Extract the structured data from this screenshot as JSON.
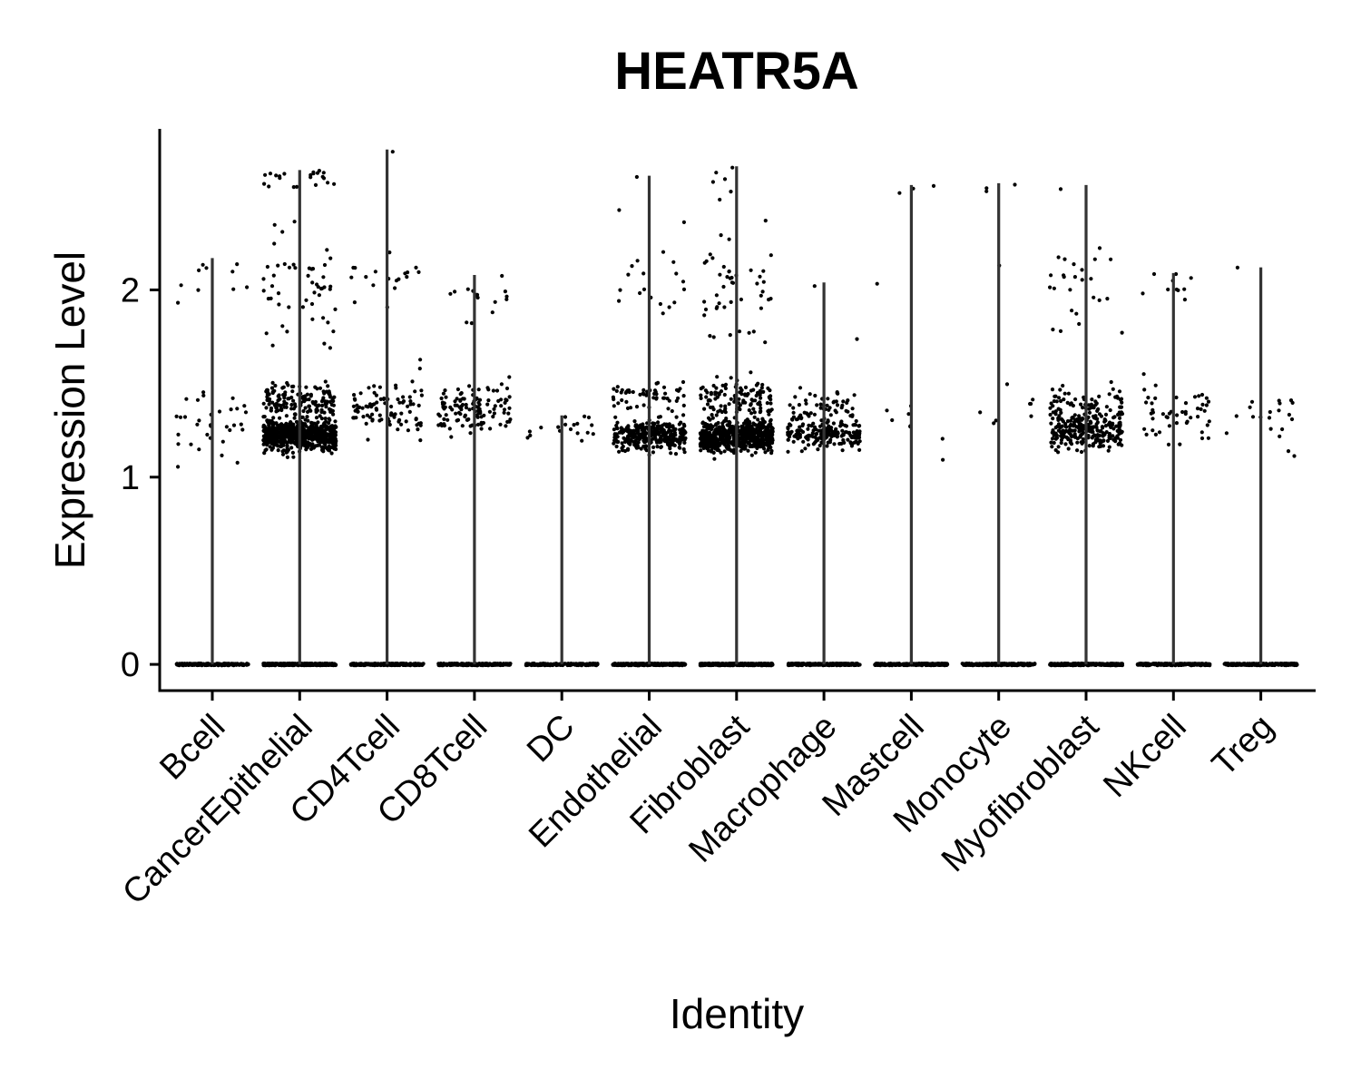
{
  "chart_data": {
    "type": "violin",
    "title": "HEATR5A",
    "xlabel": "Identity",
    "ylabel": "Expression Level",
    "ylim": [
      -0.14,
      2.86
    ],
    "yticks": [
      0,
      1,
      2
    ],
    "categories": [
      "Bcell",
      "CancerEpithelial",
      "CD4Tcell",
      "CD8Tcell",
      "DC",
      "Endothelial",
      "Fibroblast",
      "Macrophage",
      "Mastcell",
      "Monocyte",
      "Myofibroblast",
      "NKcell",
      "Treg"
    ],
    "max_values": [
      2.17,
      2.64,
      2.75,
      2.08,
      1.33,
      2.61,
      2.66,
      2.04,
      2.56,
      2.57,
      2.56,
      2.09,
      2.12
    ],
    "point_color": "#000000",
    "violin_color": "#333333",
    "groups": [
      {
        "name": "Bcell",
        "zero_count": 200,
        "clusters": [
          {
            "mean": 1.3,
            "sd": 0.08,
            "n": 30
          },
          {
            "mean": 2.07,
            "sd": 0.06,
            "n": 10
          },
          {
            "mean": 1.1,
            "sd": 0.04,
            "n": 3
          }
        ]
      },
      {
        "name": "CancerEpithelial",
        "zero_count": 400,
        "clusters": [
          {
            "mean": 1.22,
            "sd": 0.04,
            "n": 700
          },
          {
            "mean": 1.4,
            "sd": 0.05,
            "n": 150
          },
          {
            "mean": 2.05,
            "sd": 0.12,
            "n": 45
          },
          {
            "mean": 2.6,
            "sd": 0.03,
            "n": 22
          },
          {
            "mean": 1.76,
            "sd": 0.04,
            "n": 6
          }
        ]
      },
      {
        "name": "CD4Tcell",
        "zero_count": 250,
        "clusters": [
          {
            "mean": 1.36,
            "sd": 0.08,
            "n": 90
          },
          {
            "mean": 2.05,
            "sd": 0.06,
            "n": 18
          },
          {
            "mean": 2.74,
            "sd": 0.01,
            "n": 1
          }
        ]
      },
      {
        "name": "CD8Tcell",
        "zero_count": 250,
        "clusters": [
          {
            "mean": 1.36,
            "sd": 0.07,
            "n": 120
          },
          {
            "mean": 2.0,
            "sd": 0.04,
            "n": 12
          },
          {
            "mean": 1.82,
            "sd": 0.04,
            "n": 3
          }
        ]
      },
      {
        "name": "DC",
        "zero_count": 150,
        "clusters": [
          {
            "mean": 1.25,
            "sd": 0.04,
            "n": 18
          }
        ]
      },
      {
        "name": "Endothelial",
        "zero_count": 350,
        "clusters": [
          {
            "mean": 1.22,
            "sd": 0.04,
            "n": 300
          },
          {
            "mean": 1.42,
            "sd": 0.05,
            "n": 60
          },
          {
            "mean": 2.05,
            "sd": 0.12,
            "n": 18
          },
          {
            "mean": 2.5,
            "sd": 0.1,
            "n": 3
          }
        ]
      },
      {
        "name": "Fibroblast",
        "zero_count": 400,
        "clusters": [
          {
            "mean": 1.22,
            "sd": 0.04,
            "n": 600
          },
          {
            "mean": 1.42,
            "sd": 0.05,
            "n": 120
          },
          {
            "mean": 2.05,
            "sd": 0.14,
            "n": 40
          },
          {
            "mean": 2.6,
            "sd": 0.05,
            "n": 6
          },
          {
            "mean": 1.75,
            "sd": 0.04,
            "n": 6
          }
        ]
      },
      {
        "name": "Macrophage",
        "zero_count": 300,
        "clusters": [
          {
            "mean": 1.23,
            "sd": 0.04,
            "n": 200
          },
          {
            "mean": 1.38,
            "sd": 0.05,
            "n": 50
          },
          {
            "mean": 2.04,
            "sd": 0.01,
            "n": 1
          },
          {
            "mean": 1.74,
            "sd": 0.01,
            "n": 1
          }
        ]
      },
      {
        "name": "Mastcell",
        "zero_count": 250,
        "clusters": [
          {
            "mean": 1.28,
            "sd": 0.08,
            "n": 8
          },
          {
            "mean": 2.55,
            "sd": 0.02,
            "n": 3
          },
          {
            "mean": 2.06,
            "sd": 0.01,
            "n": 1
          }
        ]
      },
      {
        "name": "Monocyte",
        "zero_count": 250,
        "clusters": [
          {
            "mean": 1.34,
            "sd": 0.07,
            "n": 8
          },
          {
            "mean": 2.55,
            "sd": 0.02,
            "n": 3
          },
          {
            "mean": 2.13,
            "sd": 0.01,
            "n": 1
          }
        ]
      },
      {
        "name": "Myofibroblast",
        "zero_count": 300,
        "clusters": [
          {
            "mean": 1.25,
            "sd": 0.05,
            "n": 250
          },
          {
            "mean": 1.4,
            "sd": 0.05,
            "n": 60
          },
          {
            "mean": 2.05,
            "sd": 0.1,
            "n": 22
          },
          {
            "mean": 1.76,
            "sd": 0.04,
            "n": 3
          },
          {
            "mean": 2.55,
            "sd": 0.01,
            "n": 1
          }
        ]
      },
      {
        "name": "NKcell",
        "zero_count": 250,
        "clusters": [
          {
            "mean": 1.36,
            "sd": 0.08,
            "n": 50
          },
          {
            "mean": 2.03,
            "sd": 0.04,
            "n": 10
          }
        ]
      },
      {
        "name": "Treg",
        "zero_count": 250,
        "clusters": [
          {
            "mean": 1.3,
            "sd": 0.08,
            "n": 20
          },
          {
            "mean": 2.1,
            "sd": 0.01,
            "n": 1
          }
        ]
      }
    ]
  }
}
